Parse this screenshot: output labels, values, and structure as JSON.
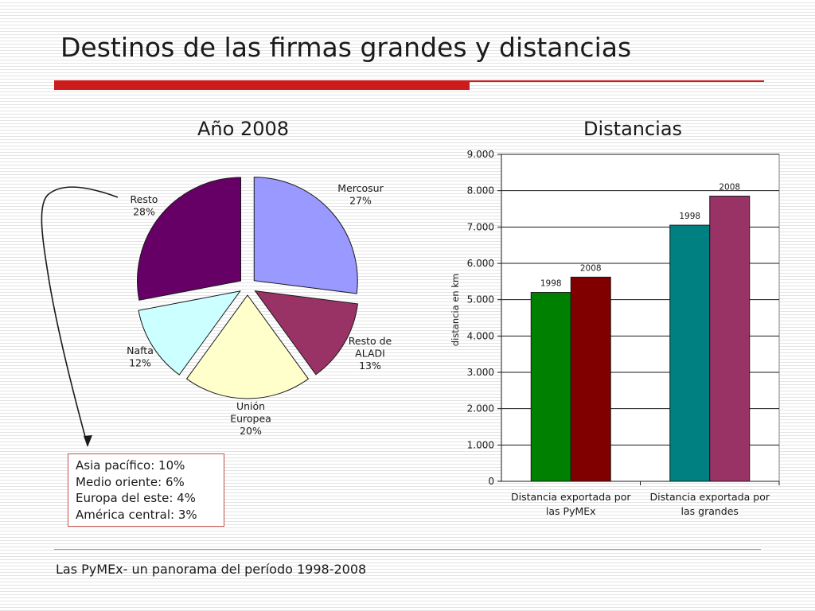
{
  "slide": {
    "title": "Destinos de las firmas grandes y distancias",
    "footer": "Las PyMEx- un panorama del período 1998-2008"
  },
  "note_box": {
    "lines": [
      "Asia pacífico: 10%",
      "Medio oriente: 6%",
      "Europa del este: 4%",
      "América central: 3%"
    ]
  },
  "colors": {
    "accent": "#cc1c1c",
    "pie": [
      "#9999ff",
      "#993366",
      "#ffffcc",
      "#ccffff",
      "#660066"
    ],
    "bar": [
      "#008000",
      "#800000",
      "#008080",
      "#993366"
    ]
  },
  "chart_data": [
    {
      "type": "pie",
      "title": "Año 2008",
      "slices": [
        {
          "label": [
            "Mercosur"
          ],
          "value": 27,
          "value_label": "27%"
        },
        {
          "label": [
            "Resto de",
            "ALADI"
          ],
          "value": 13,
          "value_label": "13%"
        },
        {
          "label": [
            "Unión",
            "Europea"
          ],
          "value": 20,
          "value_label": "20%"
        },
        {
          "label": [
            "Nafta"
          ],
          "value": 12,
          "value_label": "12%"
        },
        {
          "label": [
            "Resto"
          ],
          "value": 28,
          "value_label": "28%"
        }
      ]
    },
    {
      "type": "bar",
      "title": "Distancias",
      "ylabel": "distancia en km",
      "ylim": [
        0,
        9000
      ],
      "yticks": [
        0,
        1000,
        2000,
        3000,
        4000,
        5000,
        6000,
        7000,
        8000,
        9000
      ],
      "ytick_labels": [
        "0",
        "1.000",
        "2.000",
        "3.000",
        "4.000",
        "5.000",
        "6.000",
        "7.000",
        "8.000",
        "9.000"
      ],
      "grid": true,
      "groups": [
        {
          "label": [
            "Distancia exportada por",
            "las PyMEx"
          ],
          "bars": [
            {
              "name": "1998",
              "value": 5200
            },
            {
              "name": "2008",
              "value": 5620
            }
          ]
        },
        {
          "label": [
            "Distancia exportada por",
            "las grandes"
          ],
          "bars": [
            {
              "name": "1998",
              "value": 7050
            },
            {
              "name": "2008",
              "value": 7850
            }
          ]
        }
      ]
    }
  ]
}
